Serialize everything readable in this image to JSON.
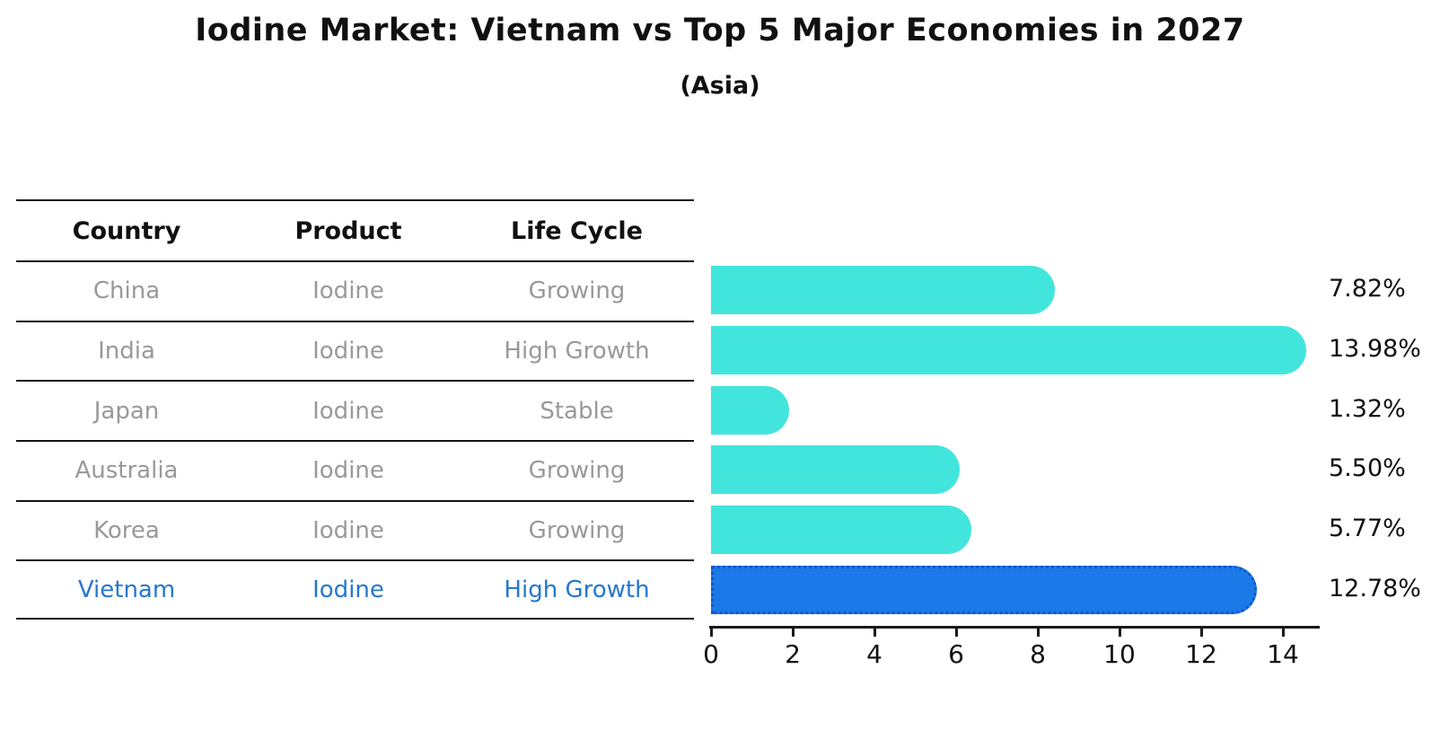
{
  "title": "Iodine Market: Vietnam vs Top 5 Major Economies in 2027",
  "subtitle": "(Asia)",
  "table": {
    "headers": [
      "Country",
      "Product",
      "Life Cycle"
    ],
    "rows": [
      {
        "country": "China",
        "product": "Iodine",
        "life_cycle": "Growing",
        "highlighted": false
      },
      {
        "country": "India",
        "product": "Iodine",
        "life_cycle": "High Growth",
        "highlighted": false
      },
      {
        "country": "Japan",
        "product": "Iodine",
        "life_cycle": "Stable",
        "highlighted": false
      },
      {
        "country": "Australia",
        "product": "Iodine",
        "life_cycle": "Growing",
        "highlighted": false
      },
      {
        "country": "Korea",
        "product": "Iodine",
        "life_cycle": "Growing",
        "highlighted": false
      },
      {
        "country": "Vietnam",
        "product": "Iodine",
        "life_cycle": "High Growth",
        "highlighted": true
      }
    ]
  },
  "chart_data": {
    "type": "bar",
    "orientation": "horizontal",
    "title": "Iodine Market: Vietnam vs Top 5 Major Economies in 2027",
    "subtitle": "(Asia)",
    "categories": [
      "China",
      "India",
      "Japan",
      "Australia",
      "Korea",
      "Vietnam"
    ],
    "values": [
      7.82,
      13.98,
      1.32,
      5.5,
      5.77,
      12.78
    ],
    "value_labels": [
      "7.82%",
      "13.98%",
      "1.32%",
      "5.50%",
      "5.77%",
      "12.78%"
    ],
    "unit": "percent",
    "x_ticks": [
      0,
      2,
      4,
      6,
      8,
      10,
      12,
      14
    ],
    "xlim": [
      0,
      14.9
    ],
    "grid": false,
    "legend": "none",
    "bar_color": "#42e5dc",
    "highlight_index": 5,
    "highlight_bar_color": "#1b79e8",
    "highlight_border_color": "#1356c8"
  },
  "colors": {
    "header_text": "#111111",
    "table_text": "#999999",
    "highlight_text": "#2577cd",
    "axis_text": "#111111"
  }
}
